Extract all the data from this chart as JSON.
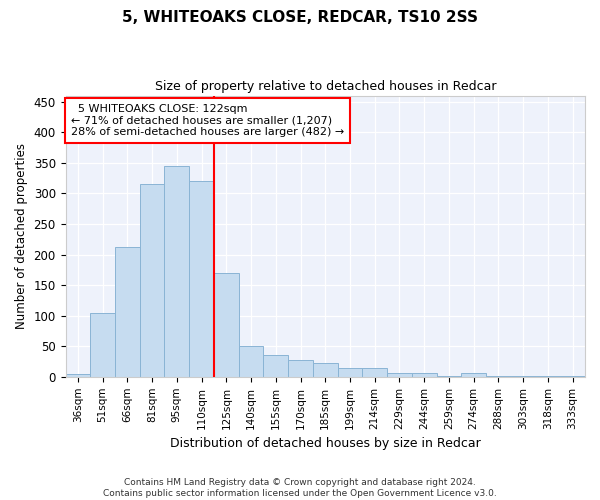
{
  "title": "5, WHITEOAKS CLOSE, REDCAR, TS10 2SS",
  "subtitle": "Size of property relative to detached houses in Redcar",
  "xlabel": "Distribution of detached houses by size in Redcar",
  "ylabel": "Number of detached properties",
  "categories": [
    "36sqm",
    "51sqm",
    "66sqm",
    "81sqm",
    "95sqm",
    "110sqm",
    "125sqm",
    "140sqm",
    "155sqm",
    "170sqm",
    "185sqm",
    "199sqm",
    "214sqm",
    "229sqm",
    "244sqm",
    "259sqm",
    "274sqm",
    "288sqm",
    "303sqm",
    "318sqm",
    "333sqm"
  ],
  "values": [
    5,
    105,
    213,
    315,
    345,
    320,
    170,
    50,
    35,
    28,
    22,
    15,
    15,
    7,
    7,
    2,
    7,
    2,
    2,
    2,
    2
  ],
  "bar_color": "#c6dcf0",
  "bar_edge_color": "#8ab4d4",
  "vline_color": "red",
  "vline_x": 6.0,
  "annotation_text": "  5 WHITEOAKS CLOSE: 122sqm\n← 71% of detached houses are smaller (1,207)\n28% of semi-detached houses are larger (482) →",
  "annotation_box_color": "white",
  "annotation_box_edge_color": "red",
  "ylim": [
    0,
    460
  ],
  "yticks": [
    0,
    50,
    100,
    150,
    200,
    250,
    300,
    350,
    400,
    450
  ],
  "footer": "Contains HM Land Registry data © Crown copyright and database right 2024.\nContains public sector information licensed under the Open Government Licence v3.0.",
  "bg_color": "#eef2fb"
}
